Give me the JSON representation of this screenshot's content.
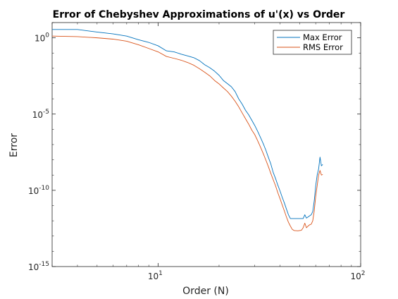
{
  "chart_data": {
    "type": "line",
    "title": "Error of Chebyshev Approximations of u'(x) vs Order",
    "xlabel": "Order (N)",
    "ylabel": "Error",
    "x_scale": "log",
    "y_scale": "log",
    "xlim": [
      3,
      100
    ],
    "ylim": [
      1e-15,
      10
    ],
    "x_ticks": [
      {
        "value": 10,
        "base": "10",
        "exp": "1"
      },
      {
        "value": 100,
        "base": "10",
        "exp": "2"
      }
    ],
    "y_ticks": [
      {
        "value": 1,
        "base": "10",
        "exp": "0"
      },
      {
        "value": 1e-05,
        "base": "10",
        "exp": "-5"
      },
      {
        "value": 1e-10,
        "base": "10",
        "exp": "-10"
      },
      {
        "value": 1e-15,
        "base": "10",
        "exp": "-15"
      }
    ],
    "grid": false,
    "legend_position": "top-right",
    "series": [
      {
        "name": "Max Error",
        "color": "#0072BD",
        "points": [
          [
            3,
            3.5
          ],
          [
            4,
            3.5
          ],
          [
            5,
            2.4
          ],
          [
            6,
            1.8
          ],
          [
            7,
            1.3
          ],
          [
            8,
            0.75
          ],
          [
            9,
            0.5
          ],
          [
            10,
            0.3
          ],
          [
            11,
            0.14
          ],
          [
            12,
            0.12
          ],
          [
            13,
            0.085
          ],
          [
            14,
            0.065
          ],
          [
            15,
            0.05
          ],
          [
            16,
            0.032
          ],
          [
            17,
            0.017
          ],
          [
            18,
            0.011
          ],
          [
            19,
            0.0065
          ],
          [
            20,
            0.0035
          ],
          [
            21,
            0.0016
          ],
          [
            22,
            0.00099
          ],
          [
            23,
            0.00062
          ],
          [
            24,
            0.0003
          ],
          [
            25,
            0.0001
          ],
          [
            26,
            4.5e-05
          ],
          [
            27,
            1.8e-05
          ],
          [
            28,
            9e-06
          ],
          [
            29,
            4e-06
          ],
          [
            30,
            1.8e-06
          ],
          [
            31,
            7.5e-07
          ],
          [
            32,
            3e-07
          ],
          [
            33,
            1.2e-07
          ],
          [
            34,
            4.5e-08
          ],
          [
            35,
            1.5e-08
          ],
          [
            36,
            5.5e-09
          ],
          [
            37,
            1.5e-09
          ],
          [
            38,
            6e-10
          ],
          [
            39,
            2.2e-10
          ],
          [
            40,
            9e-11
          ],
          [
            41,
            3.5e-11
          ],
          [
            42,
            1.5e-11
          ],
          [
            43,
            6e-12
          ],
          [
            44,
            2.5e-12
          ],
          [
            45,
            1.4e-12
          ],
          [
            47,
            1.4e-12
          ],
          [
            50,
            1.4e-12
          ],
          [
            52,
            1.4e-12
          ],
          [
            53,
            2.5e-12
          ],
          [
            54,
            1.5e-12
          ],
          [
            55,
            1.8e-12
          ],
          [
            57,
            2.5e-12
          ],
          [
            58,
            4e-12
          ],
          [
            59,
            2e-11
          ],
          [
            60,
            2e-10
          ],
          [
            61,
            1e-09
          ],
          [
            62,
            2.5e-09
          ],
          [
            63,
            1.5e-08
          ],
          [
            64,
            4e-09
          ],
          [
            65,
            5e-09
          ]
        ]
      },
      {
        "name": "RMS Error",
        "color": "#D95319",
        "points": [
          [
            3,
            1.3
          ],
          [
            4,
            1.2
          ],
          [
            5,
            1.0
          ],
          [
            6,
            0.82
          ],
          [
            7,
            0.6
          ],
          [
            8,
            0.35
          ],
          [
            9,
            0.2
          ],
          [
            10,
            0.12
          ],
          [
            11,
            0.06
          ],
          [
            12,
            0.045
          ],
          [
            13,
            0.034
          ],
          [
            14,
            0.024
          ],
          [
            15,
            0.016
          ],
          [
            16,
            0.0095
          ],
          [
            17,
            0.0055
          ],
          [
            18,
            0.0032
          ],
          [
            19,
            0.0016
          ],
          [
            20,
            0.00095
          ],
          [
            21,
            0.00052
          ],
          [
            22,
            0.0003
          ],
          [
            23,
            0.00015
          ],
          [
            24,
            7e-05
          ],
          [
            25,
            3e-05
          ],
          [
            26,
            1.2e-05
          ],
          [
            27,
            5e-06
          ],
          [
            28,
            2.2e-06
          ],
          [
            29,
            9e-07
          ],
          [
            30,
            4.5e-07
          ],
          [
            31,
            1.8e-07
          ],
          [
            32,
            7e-08
          ],
          [
            33,
            2.7e-08
          ],
          [
            34,
            1e-08
          ],
          [
            35,
            3.7e-09
          ],
          [
            36,
            1.3e-09
          ],
          [
            37,
            5e-10
          ],
          [
            38,
            2e-10
          ],
          [
            39,
            7e-11
          ],
          [
            40,
            2.8e-11
          ],
          [
            41,
            1.1e-11
          ],
          [
            42,
            4.5e-12
          ],
          [
            43,
            1.8e-12
          ],
          [
            44,
            8e-13
          ],
          [
            45,
            4.5e-13
          ],
          [
            46,
            2.7e-13
          ],
          [
            47,
            2.3e-13
          ],
          [
            49,
            2.2e-13
          ],
          [
            51,
            2.4e-13
          ],
          [
            52,
            3.5e-13
          ],
          [
            53,
            7e-13
          ],
          [
            54,
            3.5e-13
          ],
          [
            55,
            4.5e-13
          ],
          [
            56,
            5.5e-13
          ],
          [
            57,
            6e-13
          ],
          [
            58,
            1e-12
          ],
          [
            59,
            4.5e-12
          ],
          [
            60,
            4e-11
          ],
          [
            61,
            2e-10
          ],
          [
            62,
            1e-09
          ],
          [
            63,
            2e-09
          ],
          [
            64,
            1e-09
          ],
          [
            65,
            1.1e-09
          ]
        ]
      }
    ]
  }
}
